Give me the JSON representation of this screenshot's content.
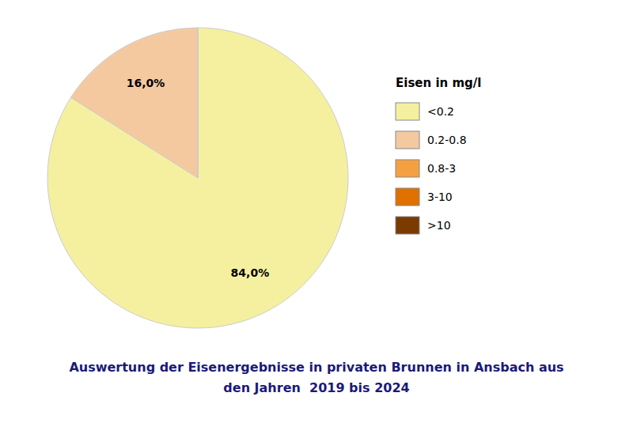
{
  "chart_data": {
    "type": "pie",
    "title": "Auswertung der Eisenergebnisse in privaten Brunnen in Ansbach aus\nden Jahren  2019 bis 2024",
    "categories": [
      "<0.2",
      "0.2-0.8",
      "0.8-3",
      "3-10",
      ">10"
    ],
    "values": [
      84.0,
      16.0,
      0.0001,
      0.0001,
      0.0001
    ],
    "value_labels": [
      "84,0%",
      "16,0%",
      null,
      null,
      null
    ],
    "colors": [
      "#f5f0a0",
      "#f5c9a0",
      "#f5a040",
      "#e07000",
      "#7a3a00"
    ],
    "legend_title": "Eisen in mg/l",
    "legend": "right",
    "data_labels": true
  }
}
